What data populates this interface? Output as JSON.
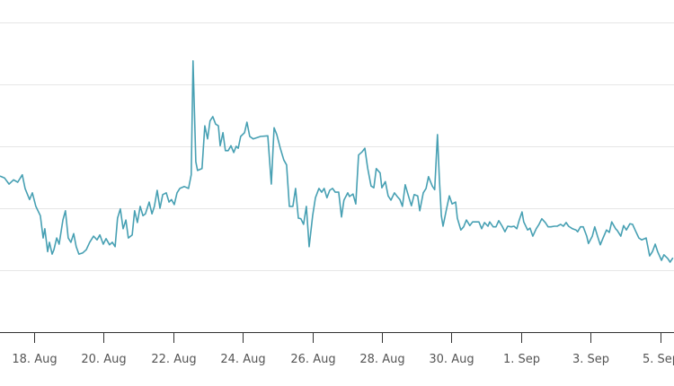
{
  "chart_data": {
    "type": "line",
    "title": "",
    "xlabel": "",
    "ylabel": "",
    "x_unit": "days since 18. Aug",
    "xlim": [
      -0.98,
      18.4
    ],
    "ylim": [
      0,
      5
    ],
    "y_gridlines": [
      1,
      2,
      3,
      4,
      5
    ],
    "grid": true,
    "legend": "none",
    "line_color": "#47a0b3",
    "x_ticks": [
      {
        "value": 0,
        "label": "18. Aug"
      },
      {
        "value": 2,
        "label": "20. Aug"
      },
      {
        "value": 4,
        "label": "22. Aug"
      },
      {
        "value": 6,
        "label": "24. Aug"
      },
      {
        "value": 8,
        "label": "26. Aug"
      },
      {
        "value": 10,
        "label": "28. Aug"
      },
      {
        "value": 12,
        "label": "30. Aug"
      },
      {
        "value": 14,
        "label": "1. Sep"
      },
      {
        "value": 16,
        "label": "3. Sep"
      },
      {
        "value": 18,
        "label": "5. Sep"
      }
    ],
    "series": [
      {
        "name": "series-1",
        "points": [
          [
            -0.98,
            2.52
          ],
          [
            -0.85,
            2.49
          ],
          [
            -0.72,
            2.39
          ],
          [
            -0.59,
            2.46
          ],
          [
            -0.47,
            2.42
          ],
          [
            -0.34,
            2.54
          ],
          [
            -0.26,
            2.32
          ],
          [
            -0.13,
            2.14
          ],
          [
            -0.05,
            2.25
          ],
          [
            0.05,
            2.03
          ],
          [
            0.18,
            1.88
          ],
          [
            0.26,
            1.52
          ],
          [
            0.31,
            1.67
          ],
          [
            0.39,
            1.3
          ],
          [
            0.44,
            1.45
          ],
          [
            0.52,
            1.26
          ],
          [
            0.57,
            1.33
          ],
          [
            0.65,
            1.52
          ],
          [
            0.72,
            1.42
          ],
          [
            0.83,
            1.81
          ],
          [
            0.9,
            1.96
          ],
          [
            0.98,
            1.52
          ],
          [
            1.06,
            1.45
          ],
          [
            1.14,
            1.59
          ],
          [
            1.21,
            1.38
          ],
          [
            1.29,
            1.26
          ],
          [
            1.4,
            1.28
          ],
          [
            1.5,
            1.33
          ],
          [
            1.6,
            1.45
          ],
          [
            1.71,
            1.55
          ],
          [
            1.81,
            1.49
          ],
          [
            1.89,
            1.57
          ],
          [
            1.99,
            1.42
          ],
          [
            2.07,
            1.51
          ],
          [
            2.17,
            1.41
          ],
          [
            2.25,
            1.45
          ],
          [
            2.33,
            1.38
          ],
          [
            2.4,
            1.84
          ],
          [
            2.48,
            1.99
          ],
          [
            2.56,
            1.67
          ],
          [
            2.64,
            1.81
          ],
          [
            2.71,
            1.52
          ],
          [
            2.82,
            1.57
          ],
          [
            2.89,
            1.96
          ],
          [
            2.97,
            1.77
          ],
          [
            3.05,
            2.03
          ],
          [
            3.13,
            1.88
          ],
          [
            3.2,
            1.91
          ],
          [
            3.31,
            2.1
          ],
          [
            3.39,
            1.91
          ],
          [
            3.46,
            2.03
          ],
          [
            3.54,
            2.29
          ],
          [
            3.62,
            2.0
          ],
          [
            3.7,
            2.22
          ],
          [
            3.8,
            2.25
          ],
          [
            3.88,
            2.1
          ],
          [
            3.95,
            2.14
          ],
          [
            4.03,
            2.06
          ],
          [
            4.11,
            2.25
          ],
          [
            4.19,
            2.32
          ],
          [
            4.32,
            2.35
          ],
          [
            4.44,
            2.32
          ],
          [
            4.52,
            2.54
          ],
          [
            4.57,
            4.38
          ],
          [
            4.65,
            2.75
          ],
          [
            4.7,
            2.61
          ],
          [
            4.83,
            2.64
          ],
          [
            4.91,
            3.33
          ],
          [
            4.99,
            3.12
          ],
          [
            5.06,
            3.41
          ],
          [
            5.14,
            3.48
          ],
          [
            5.22,
            3.36
          ],
          [
            5.3,
            3.33
          ],
          [
            5.35,
            3.01
          ],
          [
            5.43,
            3.22
          ],
          [
            5.5,
            2.93
          ],
          [
            5.58,
            2.93
          ],
          [
            5.66,
            3.01
          ],
          [
            5.74,
            2.9
          ],
          [
            5.81,
            3.0
          ],
          [
            5.87,
            2.97
          ],
          [
            5.94,
            3.16
          ],
          [
            6.05,
            3.22
          ],
          [
            6.12,
            3.39
          ],
          [
            6.2,
            3.16
          ],
          [
            6.3,
            3.12
          ],
          [
            6.51,
            3.16
          ],
          [
            6.72,
            3.17
          ],
          [
            6.82,
            2.39
          ],
          [
            6.9,
            3.3
          ],
          [
            6.98,
            3.19
          ],
          [
            7.08,
            2.97
          ],
          [
            7.18,
            2.78
          ],
          [
            7.26,
            2.7
          ],
          [
            7.34,
            2.03
          ],
          [
            7.44,
            2.03
          ],
          [
            7.52,
            2.32
          ],
          [
            7.6,
            1.84
          ],
          [
            7.67,
            1.83
          ],
          [
            7.75,
            1.74
          ],
          [
            7.83,
            2.03
          ],
          [
            7.91,
            1.38
          ],
          [
            8.01,
            1.88
          ],
          [
            8.09,
            2.17
          ],
          [
            8.19,
            2.32
          ],
          [
            8.27,
            2.26
          ],
          [
            8.34,
            2.32
          ],
          [
            8.42,
            2.17
          ],
          [
            8.5,
            2.29
          ],
          [
            8.58,
            2.32
          ],
          [
            8.66,
            2.26
          ],
          [
            8.76,
            2.26
          ],
          [
            8.84,
            1.86
          ],
          [
            8.91,
            2.13
          ],
          [
            9.02,
            2.25
          ],
          [
            9.07,
            2.19
          ],
          [
            9.17,
            2.23
          ],
          [
            9.25,
            2.07
          ],
          [
            9.33,
            2.86
          ],
          [
            9.43,
            2.91
          ],
          [
            9.51,
            2.97
          ],
          [
            9.59,
            2.65
          ],
          [
            9.69,
            2.36
          ],
          [
            9.77,
            2.33
          ],
          [
            9.84,
            2.64
          ],
          [
            9.95,
            2.57
          ],
          [
            10.0,
            2.33
          ],
          [
            10.1,
            2.43
          ],
          [
            10.18,
            2.2
          ],
          [
            10.26,
            2.13
          ],
          [
            10.36,
            2.25
          ],
          [
            10.44,
            2.19
          ],
          [
            10.52,
            2.14
          ],
          [
            10.59,
            2.03
          ],
          [
            10.67,
            2.38
          ],
          [
            10.78,
            2.17
          ],
          [
            10.85,
            2.04
          ],
          [
            10.93,
            2.22
          ],
          [
            11.03,
            2.2
          ],
          [
            11.09,
            1.96
          ],
          [
            11.19,
            2.25
          ],
          [
            11.27,
            2.32
          ],
          [
            11.34,
            2.51
          ],
          [
            11.45,
            2.36
          ],
          [
            11.52,
            2.3
          ],
          [
            11.6,
            3.19
          ],
          [
            11.65,
            2.51
          ],
          [
            11.71,
            1.88
          ],
          [
            11.76,
            1.71
          ],
          [
            11.86,
            1.99
          ],
          [
            11.94,
            2.2
          ],
          [
            12.02,
            2.07
          ],
          [
            12.12,
            2.1
          ],
          [
            12.17,
            1.84
          ],
          [
            12.27,
            1.65
          ],
          [
            12.35,
            1.7
          ],
          [
            12.43,
            1.81
          ],
          [
            12.53,
            1.72
          ],
          [
            12.61,
            1.78
          ],
          [
            12.69,
            1.78
          ],
          [
            12.79,
            1.78
          ],
          [
            12.87,
            1.67
          ],
          [
            12.95,
            1.77
          ],
          [
            13.05,
            1.71
          ],
          [
            13.1,
            1.78
          ],
          [
            13.2,
            1.7
          ],
          [
            13.28,
            1.7
          ],
          [
            13.36,
            1.8
          ],
          [
            13.46,
            1.71
          ],
          [
            13.54,
            1.62
          ],
          [
            13.62,
            1.71
          ],
          [
            13.72,
            1.7
          ],
          [
            13.8,
            1.71
          ],
          [
            13.88,
            1.67
          ],
          [
            13.95,
            1.81
          ],
          [
            14.03,
            1.94
          ],
          [
            14.08,
            1.78
          ],
          [
            14.19,
            1.65
          ],
          [
            14.26,
            1.68
          ],
          [
            14.34,
            1.55
          ],
          [
            14.44,
            1.67
          ],
          [
            14.52,
            1.74
          ],
          [
            14.6,
            1.83
          ],
          [
            14.7,
            1.77
          ],
          [
            14.78,
            1.7
          ],
          [
            14.86,
            1.7
          ],
          [
            14.96,
            1.71
          ],
          [
            15.04,
            1.71
          ],
          [
            15.14,
            1.74
          ],
          [
            15.22,
            1.71
          ],
          [
            15.3,
            1.77
          ],
          [
            15.37,
            1.71
          ],
          [
            15.48,
            1.67
          ],
          [
            15.58,
            1.65
          ],
          [
            15.63,
            1.62
          ],
          [
            15.71,
            1.7
          ],
          [
            15.79,
            1.7
          ],
          [
            15.89,
            1.55
          ],
          [
            15.94,
            1.43
          ],
          [
            16.05,
            1.55
          ],
          [
            16.12,
            1.7
          ],
          [
            16.2,
            1.55
          ],
          [
            16.28,
            1.41
          ],
          [
            16.36,
            1.52
          ],
          [
            16.46,
            1.65
          ],
          [
            16.54,
            1.61
          ],
          [
            16.61,
            1.78
          ],
          [
            16.72,
            1.67
          ],
          [
            16.77,
            1.64
          ],
          [
            16.87,
            1.55
          ],
          [
            16.95,
            1.72
          ],
          [
            17.03,
            1.65
          ],
          [
            17.13,
            1.75
          ],
          [
            17.21,
            1.74
          ],
          [
            17.29,
            1.64
          ],
          [
            17.39,
            1.52
          ],
          [
            17.47,
            1.49
          ],
          [
            17.6,
            1.52
          ],
          [
            17.7,
            1.23
          ],
          [
            17.78,
            1.3
          ],
          [
            17.86,
            1.42
          ],
          [
            17.93,
            1.3
          ],
          [
            18.04,
            1.16
          ],
          [
            18.11,
            1.25
          ],
          [
            18.22,
            1.19
          ],
          [
            18.29,
            1.13
          ],
          [
            18.37,
            1.2
          ]
        ]
      }
    ]
  }
}
